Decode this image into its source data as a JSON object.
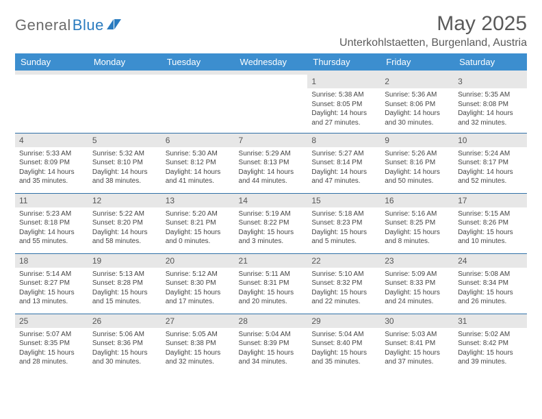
{
  "logo": {
    "textGray": "General",
    "textBlue": "Blue"
  },
  "title": "May 2025",
  "location": "Unterkohlstaetten, Burgenland, Austria",
  "colors": {
    "headerBg": "#3c8ecf",
    "headerText": "#ffffff",
    "dayStripBg": "#e7e7e7",
    "ruleColor": "#2e6fa6",
    "bodyText": "#444444",
    "titleText": "#5a5a5a"
  },
  "weekdays": [
    "Sunday",
    "Monday",
    "Tuesday",
    "Wednesday",
    "Thursday",
    "Friday",
    "Saturday"
  ],
  "weeks": [
    [
      {
        "empty": true
      },
      {
        "empty": true
      },
      {
        "empty": true
      },
      {
        "empty": true
      },
      {
        "day": "1",
        "sunrise": "Sunrise: 5:38 AM",
        "sunset": "Sunset: 8:05 PM",
        "daylight": "Daylight: 14 hours and 27 minutes."
      },
      {
        "day": "2",
        "sunrise": "Sunrise: 5:36 AM",
        "sunset": "Sunset: 8:06 PM",
        "daylight": "Daylight: 14 hours and 30 minutes."
      },
      {
        "day": "3",
        "sunrise": "Sunrise: 5:35 AM",
        "sunset": "Sunset: 8:08 PM",
        "daylight": "Daylight: 14 hours and 32 minutes."
      }
    ],
    [
      {
        "day": "4",
        "sunrise": "Sunrise: 5:33 AM",
        "sunset": "Sunset: 8:09 PM",
        "daylight": "Daylight: 14 hours and 35 minutes."
      },
      {
        "day": "5",
        "sunrise": "Sunrise: 5:32 AM",
        "sunset": "Sunset: 8:10 PM",
        "daylight": "Daylight: 14 hours and 38 minutes."
      },
      {
        "day": "6",
        "sunrise": "Sunrise: 5:30 AM",
        "sunset": "Sunset: 8:12 PM",
        "daylight": "Daylight: 14 hours and 41 minutes."
      },
      {
        "day": "7",
        "sunrise": "Sunrise: 5:29 AM",
        "sunset": "Sunset: 8:13 PM",
        "daylight": "Daylight: 14 hours and 44 minutes."
      },
      {
        "day": "8",
        "sunrise": "Sunrise: 5:27 AM",
        "sunset": "Sunset: 8:14 PM",
        "daylight": "Daylight: 14 hours and 47 minutes."
      },
      {
        "day": "9",
        "sunrise": "Sunrise: 5:26 AM",
        "sunset": "Sunset: 8:16 PM",
        "daylight": "Daylight: 14 hours and 50 minutes."
      },
      {
        "day": "10",
        "sunrise": "Sunrise: 5:24 AM",
        "sunset": "Sunset: 8:17 PM",
        "daylight": "Daylight: 14 hours and 52 minutes."
      }
    ],
    [
      {
        "day": "11",
        "sunrise": "Sunrise: 5:23 AM",
        "sunset": "Sunset: 8:18 PM",
        "daylight": "Daylight: 14 hours and 55 minutes."
      },
      {
        "day": "12",
        "sunrise": "Sunrise: 5:22 AM",
        "sunset": "Sunset: 8:20 PM",
        "daylight": "Daylight: 14 hours and 58 minutes."
      },
      {
        "day": "13",
        "sunrise": "Sunrise: 5:20 AM",
        "sunset": "Sunset: 8:21 PM",
        "daylight": "Daylight: 15 hours and 0 minutes."
      },
      {
        "day": "14",
        "sunrise": "Sunrise: 5:19 AM",
        "sunset": "Sunset: 8:22 PM",
        "daylight": "Daylight: 15 hours and 3 minutes."
      },
      {
        "day": "15",
        "sunrise": "Sunrise: 5:18 AM",
        "sunset": "Sunset: 8:23 PM",
        "daylight": "Daylight: 15 hours and 5 minutes."
      },
      {
        "day": "16",
        "sunrise": "Sunrise: 5:16 AM",
        "sunset": "Sunset: 8:25 PM",
        "daylight": "Daylight: 15 hours and 8 minutes."
      },
      {
        "day": "17",
        "sunrise": "Sunrise: 5:15 AM",
        "sunset": "Sunset: 8:26 PM",
        "daylight": "Daylight: 15 hours and 10 minutes."
      }
    ],
    [
      {
        "day": "18",
        "sunrise": "Sunrise: 5:14 AM",
        "sunset": "Sunset: 8:27 PM",
        "daylight": "Daylight: 15 hours and 13 minutes."
      },
      {
        "day": "19",
        "sunrise": "Sunrise: 5:13 AM",
        "sunset": "Sunset: 8:28 PM",
        "daylight": "Daylight: 15 hours and 15 minutes."
      },
      {
        "day": "20",
        "sunrise": "Sunrise: 5:12 AM",
        "sunset": "Sunset: 8:30 PM",
        "daylight": "Daylight: 15 hours and 17 minutes."
      },
      {
        "day": "21",
        "sunrise": "Sunrise: 5:11 AM",
        "sunset": "Sunset: 8:31 PM",
        "daylight": "Daylight: 15 hours and 20 minutes."
      },
      {
        "day": "22",
        "sunrise": "Sunrise: 5:10 AM",
        "sunset": "Sunset: 8:32 PM",
        "daylight": "Daylight: 15 hours and 22 minutes."
      },
      {
        "day": "23",
        "sunrise": "Sunrise: 5:09 AM",
        "sunset": "Sunset: 8:33 PM",
        "daylight": "Daylight: 15 hours and 24 minutes."
      },
      {
        "day": "24",
        "sunrise": "Sunrise: 5:08 AM",
        "sunset": "Sunset: 8:34 PM",
        "daylight": "Daylight: 15 hours and 26 minutes."
      }
    ],
    [
      {
        "day": "25",
        "sunrise": "Sunrise: 5:07 AM",
        "sunset": "Sunset: 8:35 PM",
        "daylight": "Daylight: 15 hours and 28 minutes."
      },
      {
        "day": "26",
        "sunrise": "Sunrise: 5:06 AM",
        "sunset": "Sunset: 8:36 PM",
        "daylight": "Daylight: 15 hours and 30 minutes."
      },
      {
        "day": "27",
        "sunrise": "Sunrise: 5:05 AM",
        "sunset": "Sunset: 8:38 PM",
        "daylight": "Daylight: 15 hours and 32 minutes."
      },
      {
        "day": "28",
        "sunrise": "Sunrise: 5:04 AM",
        "sunset": "Sunset: 8:39 PM",
        "daylight": "Daylight: 15 hours and 34 minutes."
      },
      {
        "day": "29",
        "sunrise": "Sunrise: 5:04 AM",
        "sunset": "Sunset: 8:40 PM",
        "daylight": "Daylight: 15 hours and 35 minutes."
      },
      {
        "day": "30",
        "sunrise": "Sunrise: 5:03 AM",
        "sunset": "Sunset: 8:41 PM",
        "daylight": "Daylight: 15 hours and 37 minutes."
      },
      {
        "day": "31",
        "sunrise": "Sunrise: 5:02 AM",
        "sunset": "Sunset: 8:42 PM",
        "daylight": "Daylight: 15 hours and 39 minutes."
      }
    ]
  ]
}
